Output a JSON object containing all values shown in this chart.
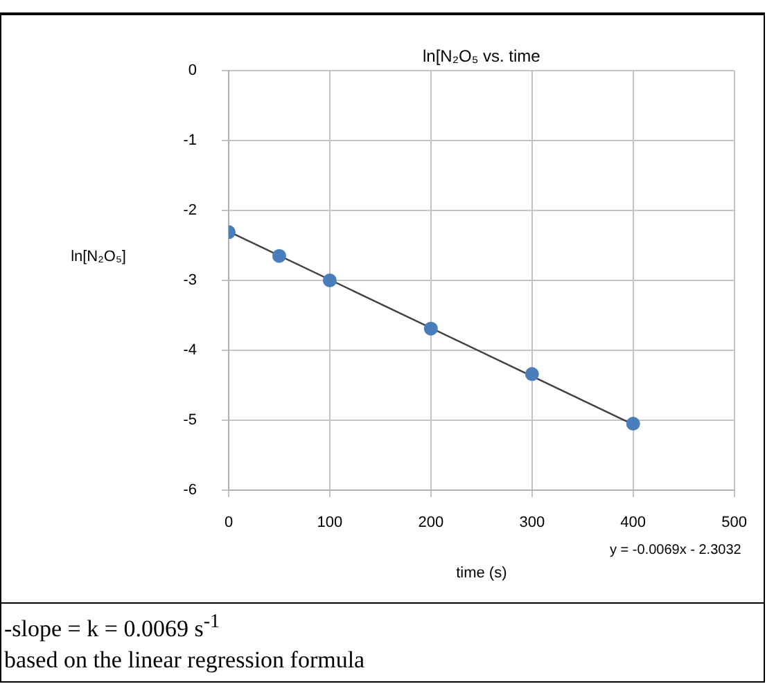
{
  "chart_data": {
    "type": "scatter",
    "title": "ln[N₂O₅ vs. time",
    "xlabel": "time (s)",
    "ylabel": "ln[N₂O₅]",
    "series": [
      {
        "color": "#4a7ebb",
        "x": [
          0,
          50,
          100,
          200,
          300,
          400
        ],
        "values": [
          -2.31,
          -2.65,
          -3.0,
          -3.69,
          -4.34,
          -5.05
        ]
      },
      {
        "type": "line",
        "color": "#404040",
        "marker": "none",
        "x": [
          0,
          400
        ],
        "values": [
          -2.3,
          -5.06
        ]
      }
    ],
    "xlim": [
      0,
      500
    ],
    "xticks": [
      0,
      100,
      200,
      300,
      400,
      500
    ],
    "ylim": [
      -6,
      0
    ],
    "yticks": [
      -6,
      -5,
      -4,
      -3,
      -2,
      -1,
      0
    ],
    "grid": true,
    "legend": false,
    "marker": "circle",
    "annotations": [
      "y = -0.0069x - 2.3032",
      "-slope = k  = 0.0069 s$^{-1}$",
      "based on the linear regression formula"
    ]
  }
}
